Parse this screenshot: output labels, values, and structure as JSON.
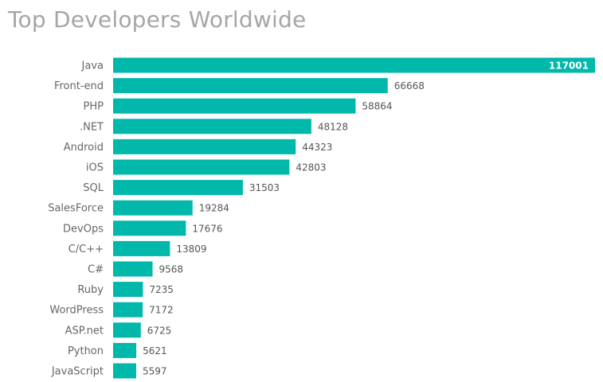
{
  "chart_data": {
    "type": "bar",
    "orientation": "horizontal",
    "title": "Top Developers Worldwide",
    "categories": [
      "Java",
      "Front-end",
      "PHP",
      ".NET",
      "Android",
      "iOS",
      "SQL",
      "SalesForce",
      "DevOps",
      "C/C++",
      "C#",
      "Ruby",
      "WordPress",
      "ASP.net",
      "Python",
      "JavaScript"
    ],
    "values": [
      117001,
      66668,
      58864,
      48128,
      44323,
      42803,
      31503,
      19284,
      17676,
      13809,
      9568,
      7235,
      7172,
      6725,
      5621,
      5597
    ],
    "data_labels": [
      "117001",
      "66668",
      "58864",
      "48128",
      "44323",
      "42803",
      "31503",
      "19284",
      "17676",
      "13809",
      "9568",
      "7235",
      "7172",
      "6725",
      "5621",
      "5597"
    ],
    "xlim": [
      0,
      117001
    ],
    "grid": false,
    "legend": "none",
    "bar_color": "#01b8aa",
    "title_color": "#a6a6a6"
  }
}
